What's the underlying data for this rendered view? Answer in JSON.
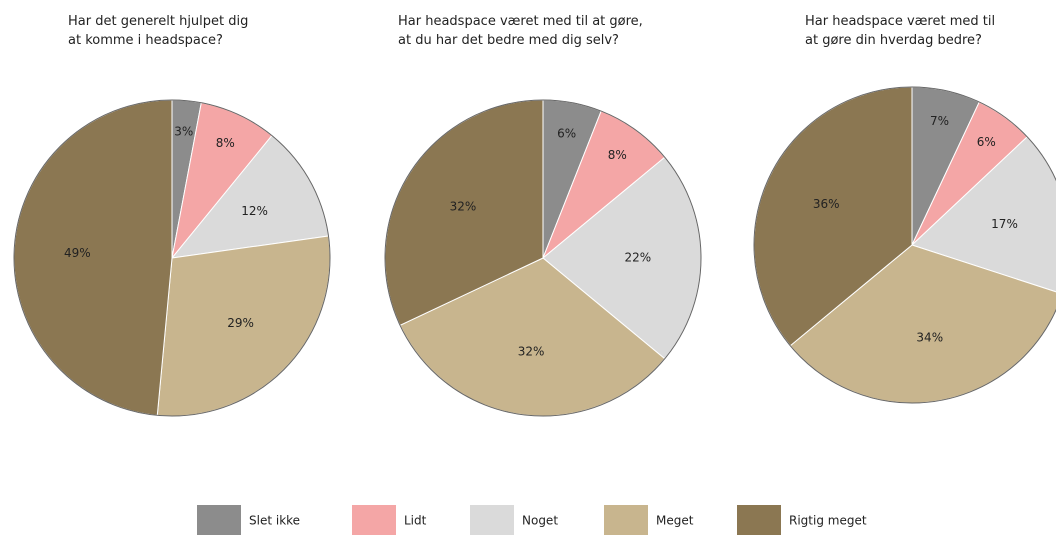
{
  "chart_data": [
    {
      "type": "pie",
      "title": "Har det generelt hjulpet dig\nat komme i headspace?",
      "categories": [
        "Slet ikke",
        "Lidt",
        "Noget",
        "Meget",
        "Rigtig meget"
      ],
      "colors": [
        "#8c8c8c",
        "#f4a6a6",
        "#dadada",
        "#c8b58e",
        "#8b7752"
      ],
      "values": [
        3,
        8,
        12,
        29,
        49
      ],
      "value_labels": [
        "3%",
        "8%",
        "12%",
        "29%",
        "49%"
      ]
    },
    {
      "type": "pie",
      "title": "Har headspace været med til at gøre,\nat du har det bedre med dig selv?",
      "categories": [
        "Slet ikke",
        "Lidt",
        "Noget",
        "Meget",
        "Rigtig meget"
      ],
      "colors": [
        "#8c8c8c",
        "#f4a6a6",
        "#dadada",
        "#c8b58e",
        "#8b7752"
      ],
      "values": [
        6,
        8,
        22,
        32,
        32
      ],
      "value_labels": [
        "6%",
        "8%",
        "22%",
        "32%",
        "32%"
      ]
    },
    {
      "type": "pie",
      "title": "Har headspace været med til\nat gøre din hverdag bedre?",
      "categories": [
        "Slet ikke",
        "Lidt",
        "Noget",
        "Meget",
        "Rigtig meget"
      ],
      "colors": [
        "#8c8c8c",
        "#f4a6a6",
        "#dadada",
        "#c8b58e",
        "#8b7752"
      ],
      "values": [
        7,
        6,
        17,
        34,
        36
      ],
      "value_labels": [
        "7%",
        "6%",
        "17%",
        "34%",
        "36%"
      ]
    }
  ]
}
